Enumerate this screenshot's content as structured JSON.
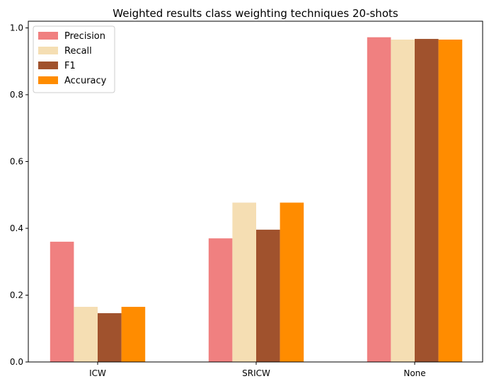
{
  "chart_data": {
    "type": "bar",
    "title": "Weighted results class weighting techniques 20-shots",
    "xlabel": "",
    "ylabel": "",
    "categories": [
      "ICW",
      "SRICW",
      "None"
    ],
    "series": [
      {
        "name": "Precision",
        "color": "#f08080",
        "values": [
          0.36,
          0.37,
          0.972
        ]
      },
      {
        "name": "Recall",
        "color": "#f5deb3",
        "values": [
          0.165,
          0.477,
          0.965
        ]
      },
      {
        "name": "F1",
        "color": "#a0522d",
        "values": [
          0.146,
          0.396,
          0.967
        ]
      },
      {
        "name": "Accuracy",
        "color": "#ff8c00",
        "values": [
          0.165,
          0.477,
          0.965
        ]
      }
    ],
    "ylim": [
      0,
      1.02
    ],
    "yticks": [
      "0.0",
      "0.2",
      "0.4",
      "0.6",
      "0.8",
      "1.0"
    ],
    "grid": false,
    "legend_position": "top-left"
  }
}
